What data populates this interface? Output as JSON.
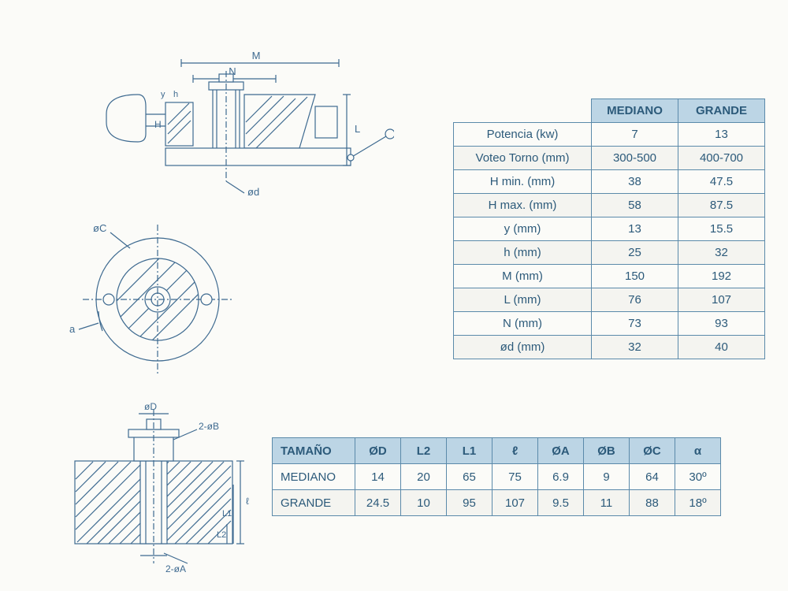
{
  "colors": {
    "page_bg": "#fbfbf8",
    "header_bg": "#bcd5e5",
    "border": "#5b8aaa",
    "text": "#2c5a7a",
    "row_alt_bg": "#f4f4f0",
    "diagram_line": "#3e6a90",
    "hatch": "#6b95b6"
  },
  "table1": {
    "header": {
      "col1": "MEDIANO",
      "col2": "GRANDE"
    },
    "rows": [
      {
        "label": "Potencia (kw)",
        "v1": "7",
        "v2": "13"
      },
      {
        "label": "Voteo Torno (mm)",
        "v1": "300-500",
        "v2": "400-700"
      },
      {
        "label": "H min. (mm)",
        "v1": "38",
        "v2": "47.5"
      },
      {
        "label": "H max. (mm)",
        "v1": "58",
        "v2": "87.5"
      },
      {
        "label": "y (mm)",
        "v1": "13",
        "v2": "15.5"
      },
      {
        "label": "h (mm)",
        "v1": "25",
        "v2": "32"
      },
      {
        "label": "M (mm)",
        "v1": "150",
        "v2": "192"
      },
      {
        "label": "L (mm)",
        "v1": "76",
        "v2": "107"
      },
      {
        "label": "N (mm)",
        "v1": "73",
        "v2": "93"
      },
      {
        "label": "ød (mm)",
        "v1": "32",
        "v2": "40"
      }
    ]
  },
  "table2": {
    "header": [
      "TAMAÑO",
      "ØD",
      "L2",
      "L1",
      "ℓ",
      "ØA",
      "ØB",
      "ØC",
      "α"
    ],
    "rows": [
      {
        "size": "MEDIANO",
        "v": [
          "14",
          "20",
          "65",
          "75",
          "6.9",
          "9",
          "64",
          "30º"
        ]
      },
      {
        "size": "GRANDE",
        "v": [
          "24.5",
          "10",
          "95",
          "107",
          "9.5",
          "11",
          "88",
          "18º"
        ]
      }
    ]
  },
  "diagrams": {
    "top_side": {
      "dim_labels": [
        "M",
        "N",
        "L",
        "H",
        "h",
        "y",
        "ød"
      ]
    },
    "circle_top": {
      "dim_labels": [
        "øC",
        "a"
      ]
    },
    "section": {
      "dim_labels": [
        "øD",
        "2-øB",
        "2-øA",
        "L1",
        "L2",
        "ℓ"
      ]
    }
  }
}
